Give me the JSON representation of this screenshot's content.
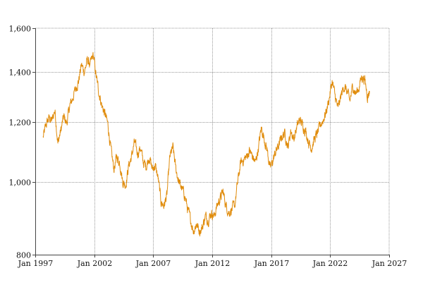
{
  "chart_data": {
    "type": "line",
    "title": "",
    "xlabel": "",
    "ylabel": "",
    "x_ticks": [
      "Jan 1997",
      "Jan 2002",
      "Jan 2007",
      "Jan 2012",
      "Jan 2017",
      "Jan 2022",
      "Jan 2027"
    ],
    "y_ticks": [
      "800",
      "1,000",
      "1,200",
      "1,400",
      "1,600"
    ],
    "y_scale": "log",
    "xlim": [
      "1997-01",
      "2027-01"
    ],
    "ylim": [
      800,
      1600
    ],
    "grid": true,
    "series": [
      {
        "color": "#e08c0c",
        "x": [
          "1997-09",
          "1997-12",
          "1998-03",
          "1998-06",
          "1998-09",
          "1998-12",
          "1999-03",
          "1999-06",
          "1999-09",
          "1999-12",
          "2000-03",
          "2000-06",
          "2000-09",
          "2000-12",
          "2001-03",
          "2001-06",
          "2001-09",
          "2001-12",
          "2002-03",
          "2002-06",
          "2002-09",
          "2002-12",
          "2003-03",
          "2003-06",
          "2003-09",
          "2003-12",
          "2004-03",
          "2004-06",
          "2004-09",
          "2004-12",
          "2005-03",
          "2005-06",
          "2005-09",
          "2005-12",
          "2006-03",
          "2006-06",
          "2006-09",
          "2006-12",
          "2007-03",
          "2007-06",
          "2007-09",
          "2007-12",
          "2008-03",
          "2008-06",
          "2008-09",
          "2008-12",
          "2009-03",
          "2009-06",
          "2009-09",
          "2009-12",
          "2010-03",
          "2010-06",
          "2010-09",
          "2010-12",
          "2011-03",
          "2011-06",
          "2011-09",
          "2011-12",
          "2012-03",
          "2012-06",
          "2012-09",
          "2012-12",
          "2013-03",
          "2013-06",
          "2013-09",
          "2013-12",
          "2014-03",
          "2014-06",
          "2014-09",
          "2014-12",
          "2015-03",
          "2015-06",
          "2015-09",
          "2015-12",
          "2016-03",
          "2016-06",
          "2016-09",
          "2016-12",
          "2017-03",
          "2017-06",
          "2017-09",
          "2017-12",
          "2018-03",
          "2018-06",
          "2018-09",
          "2018-12",
          "2019-03",
          "2019-06",
          "2019-09",
          "2019-12",
          "2020-03",
          "2020-06",
          "2020-09",
          "2020-12",
          "2021-03",
          "2021-06",
          "2021-09",
          "2021-12",
          "2022-03",
          "2022-06",
          "2022-09",
          "2022-12",
          "2023-03",
          "2023-06",
          "2023-09",
          "2023-12",
          "2024-03",
          "2024-06",
          "2024-09",
          "2024-12",
          "2025-03",
          "2025-05"
        ],
        "values": [
          1145,
          1190,
          1215,
          1205,
          1245,
          1125,
          1170,
          1220,
          1195,
          1260,
          1290,
          1330,
          1360,
          1430,
          1400,
          1450,
          1430,
          1475,
          1380,
          1310,
          1260,
          1230,
          1190,
          1100,
          1040,
          1080,
          1060,
          1000,
          990,
          1050,
          1080,
          1130,
          1090,
          1110,
          1060,
          1050,
          1080,
          1040,
          1050,
          1010,
          940,
          930,
          960,
          1080,
          1110,
          1040,
          1000,
          980,
          960,
          920,
          890,
          860,
          880,
          860,
          870,
          900,
          890,
          910,
          900,
          930,
          950,
          970,
          930,
          910,
          920,
          930,
          1000,
          1060,
          1070,
          1080,
          1100,
          1080,
          1060,
          1110,
          1180,
          1140,
          1100,
          1040,
          1070,
          1100,
          1120,
          1150,
          1160,
          1110,
          1170,
          1140,
          1180,
          1210,
          1190,
          1170,
          1130,
          1110,
          1140,
          1160,
          1190,
          1210,
          1240,
          1290,
          1360,
          1300,
          1250,
          1300,
          1340,
          1320,
          1280,
          1340,
          1310,
          1330,
          1380,
          1370,
          1300,
          1320
        ]
      }
    ]
  }
}
